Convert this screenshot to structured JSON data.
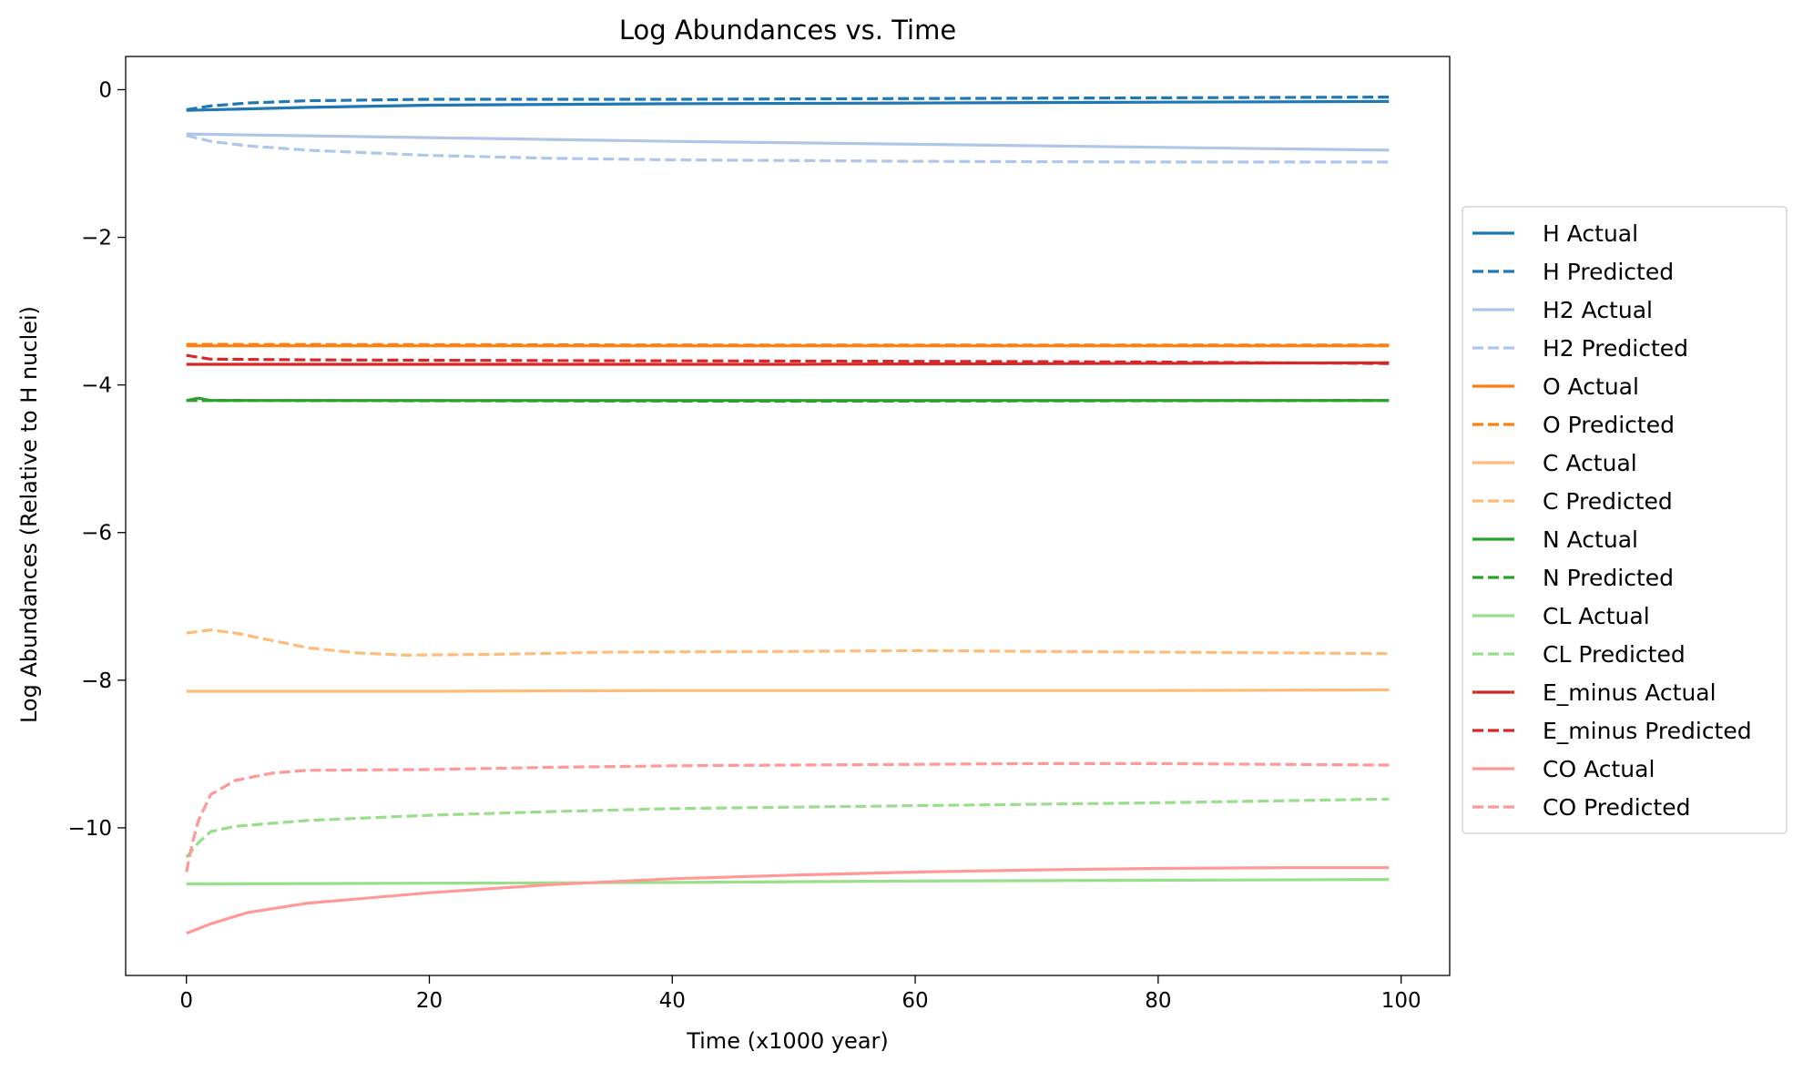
{
  "chart_data": {
    "type": "line",
    "title": "Log Abundances vs. Time",
    "xlabel": "Time (x1000 year)",
    "ylabel": "Log Abundances (Relative to H nuclei)",
    "xlim": [
      -5,
      104
    ],
    "ylim": [
      -12.0,
      0.45
    ],
    "xticks": [
      0,
      20,
      40,
      60,
      80,
      100
    ],
    "xtick_labels": [
      "0",
      "20",
      "40",
      "60",
      "80",
      "100"
    ],
    "yticks": [
      0,
      -2,
      -4,
      -6,
      -8,
      -10
    ],
    "ytick_labels": [
      "0",
      "−2",
      "−4",
      "−6",
      "−8",
      "−10"
    ],
    "grid": false,
    "legend_placement": "right, outside",
    "series": [
      {
        "name": "H Actual",
        "color": "#1f77b4",
        "dash": "solid",
        "points": [
          [
            0,
            -0.28
          ],
          [
            10,
            -0.24
          ],
          [
            20,
            -0.21
          ],
          [
            40,
            -0.19
          ],
          [
            60,
            -0.18
          ],
          [
            80,
            -0.17
          ],
          [
            99,
            -0.16
          ]
        ]
      },
      {
        "name": "H Predicted",
        "color": "#1f77b4",
        "dash": "dashed",
        "points": [
          [
            0,
            -0.27
          ],
          [
            2,
            -0.22
          ],
          [
            5,
            -0.18
          ],
          [
            10,
            -0.15
          ],
          [
            20,
            -0.13
          ],
          [
            40,
            -0.13
          ],
          [
            60,
            -0.12
          ],
          [
            80,
            -0.11
          ],
          [
            99,
            -0.1
          ]
        ]
      },
      {
        "name": "H2 Actual",
        "color": "#aec7e8",
        "dash": "solid",
        "points": [
          [
            0,
            -0.6
          ],
          [
            20,
            -0.65
          ],
          [
            40,
            -0.7
          ],
          [
            60,
            -0.74
          ],
          [
            80,
            -0.78
          ],
          [
            99,
            -0.82
          ]
        ]
      },
      {
        "name": "H2 Predicted",
        "color": "#aec7e8",
        "dash": "dashed",
        "points": [
          [
            0,
            -0.62
          ],
          [
            2,
            -0.7
          ],
          [
            5,
            -0.76
          ],
          [
            10,
            -0.82
          ],
          [
            20,
            -0.89
          ],
          [
            30,
            -0.93
          ],
          [
            40,
            -0.95
          ],
          [
            60,
            -0.97
          ],
          [
            80,
            -0.98
          ],
          [
            99,
            -0.98
          ]
        ]
      },
      {
        "name": "O Actual",
        "color": "#ff7f0e",
        "dash": "solid",
        "points": [
          [
            0,
            -3.47
          ],
          [
            50,
            -3.47
          ],
          [
            99,
            -3.47
          ]
        ]
      },
      {
        "name": "O Predicted",
        "color": "#ff7f0e",
        "dash": "dashed",
        "points": [
          [
            0,
            -3.45
          ],
          [
            50,
            -3.46
          ],
          [
            99,
            -3.46
          ]
        ]
      },
      {
        "name": "C Actual",
        "color": "#ffbb78",
        "dash": "solid",
        "points": [
          [
            0,
            -8.15
          ],
          [
            20,
            -8.15
          ],
          [
            40,
            -8.14
          ],
          [
            60,
            -8.14
          ],
          [
            80,
            -8.14
          ],
          [
            99,
            -8.13
          ]
        ]
      },
      {
        "name": "C Predicted",
        "color": "#ffbb78",
        "dash": "dashed",
        "points": [
          [
            0,
            -7.36
          ],
          [
            2,
            -7.32
          ],
          [
            4,
            -7.36
          ],
          [
            7,
            -7.46
          ],
          [
            10,
            -7.56
          ],
          [
            14,
            -7.63
          ],
          [
            18,
            -7.66
          ],
          [
            25,
            -7.65
          ],
          [
            35,
            -7.62
          ],
          [
            50,
            -7.61
          ],
          [
            60,
            -7.6
          ],
          [
            70,
            -7.61
          ],
          [
            80,
            -7.62
          ],
          [
            90,
            -7.63
          ],
          [
            99,
            -7.64
          ]
        ]
      },
      {
        "name": "N Actual",
        "color": "#2ca02c",
        "dash": "solid",
        "points": [
          [
            0,
            -4.21
          ],
          [
            1,
            -4.18
          ],
          [
            2,
            -4.21
          ],
          [
            50,
            -4.21
          ],
          [
            99,
            -4.21
          ]
        ]
      },
      {
        "name": "N Predicted",
        "color": "#2ca02c",
        "dash": "dashed",
        "points": [
          [
            0,
            -4.21
          ],
          [
            50,
            -4.22
          ],
          [
            99,
            -4.21
          ]
        ]
      },
      {
        "name": "CL Actual",
        "color": "#98df8a",
        "dash": "solid",
        "points": [
          [
            0,
            -10.76
          ],
          [
            20,
            -10.75
          ],
          [
            40,
            -10.74
          ],
          [
            60,
            -10.72
          ],
          [
            80,
            -10.71
          ],
          [
            99,
            -10.7
          ]
        ]
      },
      {
        "name": "CL Predicted",
        "color": "#98df8a",
        "dash": "dashed",
        "points": [
          [
            0,
            -10.4
          ],
          [
            1,
            -10.2
          ],
          [
            2,
            -10.05
          ],
          [
            4,
            -9.98
          ],
          [
            7,
            -9.94
          ],
          [
            10,
            -9.9
          ],
          [
            20,
            -9.83
          ],
          [
            30,
            -9.78
          ],
          [
            40,
            -9.74
          ],
          [
            60,
            -9.7
          ],
          [
            80,
            -9.66
          ],
          [
            99,
            -9.61
          ]
        ]
      },
      {
        "name": "E_minus Actual",
        "color": "#d62728",
        "dash": "solid",
        "points": [
          [
            0,
            -3.72
          ],
          [
            50,
            -3.72
          ],
          [
            99,
            -3.7
          ]
        ]
      },
      {
        "name": "E_minus Predicted",
        "color": "#d62728",
        "dash": "dashed",
        "points": [
          [
            0,
            -3.6
          ],
          [
            2,
            -3.65
          ],
          [
            10,
            -3.66
          ],
          [
            30,
            -3.67
          ],
          [
            60,
            -3.68
          ],
          [
            80,
            -3.69
          ],
          [
            99,
            -3.71
          ]
        ]
      },
      {
        "name": "CO Actual",
        "color": "#ff9896",
        "dash": "solid",
        "points": [
          [
            0,
            -11.43
          ],
          [
            2,
            -11.3
          ],
          [
            5,
            -11.15
          ],
          [
            10,
            -11.02
          ],
          [
            20,
            -10.88
          ],
          [
            30,
            -10.77
          ],
          [
            40,
            -10.69
          ],
          [
            50,
            -10.64
          ],
          [
            60,
            -10.6
          ],
          [
            70,
            -10.57
          ],
          [
            80,
            -10.55
          ],
          [
            90,
            -10.54
          ],
          [
            99,
            -10.54
          ]
        ]
      },
      {
        "name": "CO Predicted",
        "color": "#ff9896",
        "dash": "dashed",
        "points": [
          [
            0,
            -10.6
          ],
          [
            0.5,
            -10.2
          ],
          [
            1,
            -9.9
          ],
          [
            2,
            -9.55
          ],
          [
            4,
            -9.36
          ],
          [
            7,
            -9.26
          ],
          [
            10,
            -9.22
          ],
          [
            20,
            -9.21
          ],
          [
            30,
            -9.18
          ],
          [
            40,
            -9.16
          ],
          [
            50,
            -9.15
          ],
          [
            60,
            -9.14
          ],
          [
            70,
            -9.13
          ],
          [
            80,
            -9.13
          ],
          [
            90,
            -9.14
          ],
          [
            99,
            -9.15
          ]
        ]
      }
    ]
  }
}
